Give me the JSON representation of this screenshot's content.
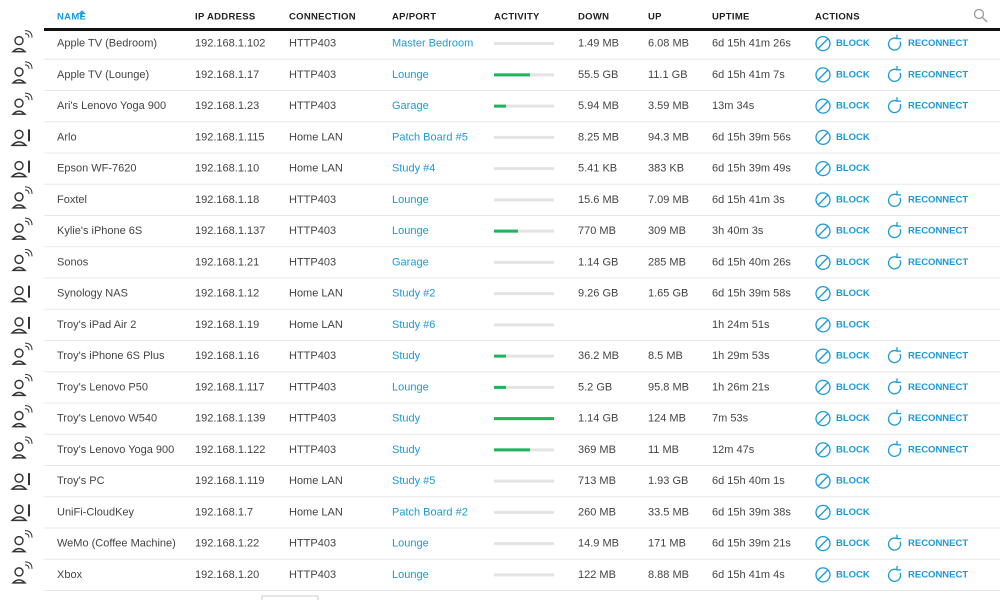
{
  "header": {
    "columns": [
      "NAME",
      "IP ADDRESS",
      "CONNECTION",
      "AP/PORT",
      "ACTIVITY",
      "DOWN",
      "UP",
      "UPTIME",
      "ACTIONS"
    ]
  },
  "table": {
    "rows": [
      {
        "name": "Apple TV (Bedroom)",
        "ip": "192.168.1.102",
        "connection": "HTTP403",
        "ap": "Master Bedroom",
        "activity": 0,
        "down": "1.49 MB",
        "up": "6.08 MB",
        "uptime": "6d 15h 41m 26s",
        "actions": [
          "BLOCK",
          "RECONNECT"
        ]
      },
      {
        "name": "Apple TV (Lounge)",
        "ip": "192.168.1.17",
        "connection": "HTTP403",
        "ap": "Lounge",
        "activity": 0.6,
        "down": "55.5 GB",
        "up": "11.1 GB",
        "uptime": "6d 15h 41m 7s",
        "actions": [
          "BLOCK",
          "RECONNECT"
        ]
      },
      {
        "name": "Ari's Lenovo Yoga 900",
        "ip": "192.168.1.23",
        "connection": "HTTP403",
        "ap": "Garage",
        "activity": 0.2,
        "down": "5.94 MB",
        "up": "3.59 MB",
        "uptime": "13m 34s",
        "actions": [
          "BLOCK",
          "RECONNECT"
        ]
      },
      {
        "name": "Arlo",
        "ip": "192.168.1.115",
        "connection": "Home LAN",
        "ap": "Patch Board #5",
        "activity": 0,
        "down": "8.25 MB",
        "up": "94.3 MB",
        "uptime": "6d 15h 39m 56s",
        "actions": [
          "BLOCK"
        ]
      },
      {
        "name": "Epson WF-7620",
        "ip": "192.168.1.10",
        "connection": "Home LAN",
        "ap": "Study #4",
        "activity": 0,
        "down": "5.41 KB",
        "up": "383 KB",
        "uptime": "6d 15h 39m 49s",
        "actions": [
          "BLOCK"
        ]
      },
      {
        "name": "Foxtel",
        "ip": "192.168.1.18",
        "connection": "HTTP403",
        "ap": "Lounge",
        "activity": 0,
        "down": "15.6 MB",
        "up": "7.09 MB",
        "uptime": "6d 15h 41m 3s",
        "actions": [
          "BLOCK",
          "RECONNECT"
        ]
      },
      {
        "name": "Kylie's iPhone 6S",
        "ip": "192.168.1.137",
        "connection": "HTTP403",
        "ap": "Lounge",
        "activity": 0.4,
        "down": "770 MB",
        "up": "309 MB",
        "uptime": "3h 40m 3s",
        "actions": [
          "BLOCK",
          "RECONNECT"
        ]
      },
      {
        "name": "Sonos",
        "ip": "192.168.1.21",
        "connection": "HTTP403",
        "ap": "Garage",
        "activity": 0,
        "down": "1.14 GB",
        "up": "285 MB",
        "uptime": "6d 15h 40m 26s",
        "actions": [
          "BLOCK",
          "RECONNECT"
        ]
      },
      {
        "name": "Synology NAS",
        "ip": "192.168.1.12",
        "connection": "Home LAN",
        "ap": "Study #2",
        "activity": 0,
        "down": "9.26 GB",
        "up": "1.65 GB",
        "uptime": "6d 15h 39m 58s",
        "actions": [
          "BLOCK"
        ]
      },
      {
        "name": "Troy's iPad Air 2",
        "ip": "192.168.1.19",
        "connection": "Home LAN",
        "ap": "Study #6",
        "activity": 0,
        "down": null,
        "up": null,
        "uptime": "1h 24m 51s",
        "actions": [
          "BLOCK"
        ]
      },
      {
        "name": "Troy's iPhone 6S Plus",
        "ip": "192.168.1.16",
        "connection": "HTTP403",
        "ap": "Study",
        "activity": 0.2,
        "down": "36.2 MB",
        "up": "8.5 MB",
        "uptime": "1h 29m 53s",
        "actions": [
          "BLOCK",
          "RECONNECT"
        ]
      },
      {
        "name": "Troy's Lenovo P50",
        "ip": "192.168.1.117",
        "connection": "HTTP403",
        "ap": "Lounge",
        "activity": 0.2,
        "down": "5.2 GB",
        "up": "95.8 MB",
        "uptime": "1h 26m 21s",
        "actions": [
          "BLOCK",
          "RECONNECT"
        ]
      },
      {
        "name": "Troy's Lenovo W540",
        "ip": "192.168.1.139",
        "connection": "HTTP403",
        "ap": "Study",
        "activity": 1,
        "down": "1.14 GB",
        "up": "124 MB",
        "uptime": "7m 53s",
        "actions": [
          "BLOCK",
          "RECONNECT"
        ]
      },
      {
        "name": "Troy's Lenovo Yoga 900",
        "ip": "192.168.1.122",
        "connection": "HTTP403",
        "ap": "Study",
        "activity": 0.6,
        "down": "369 MB",
        "up": "11 MB",
        "uptime": "12m 47s",
        "actions": [
          "BLOCK",
          "RECONNECT"
        ]
      },
      {
        "name": "Troy's PC",
        "ip": "192.168.1.119",
        "connection": "Home LAN",
        "ap": "Study #5",
        "activity": 0,
        "down": "713 MB",
        "up": "1.93 GB",
        "uptime": "6d 15h 40m 1s",
        "actions": [
          "BLOCK"
        ]
      },
      {
        "name": "UniFi-CloudKey",
        "ip": "192.168.1.7",
        "connection": "Home LAN",
        "ap": "Patch Board #2",
        "activity": 0,
        "down": "260 MB",
        "up": "33.5 MB",
        "uptime": "6d 15h 39m 38s",
        "actions": [
          "BLOCK"
        ]
      },
      {
        "name": "WeMo (Coffee Machine)",
        "ip": "192.168.1.22",
        "connection": "HTTP403",
        "ap": "Lounge",
        "activity": 0,
        "down": "14.9 MB",
        "up": "171 MB",
        "uptime": "6d 15h 39m 21s",
        "actions": [
          "BLOCK",
          "RECONNECT"
        ]
      },
      {
        "name": "Xbox",
        "ip": "192.168.1.20",
        "connection": "HTTP403",
        "ap": "Lounge",
        "activity": 0,
        "down": "122 MB",
        "up": "8.88 MB",
        "uptime": "6d 15h 41m 4s",
        "actions": [
          "BLOCK",
          "RECONNECT"
        ]
      }
    ]
  }
}
